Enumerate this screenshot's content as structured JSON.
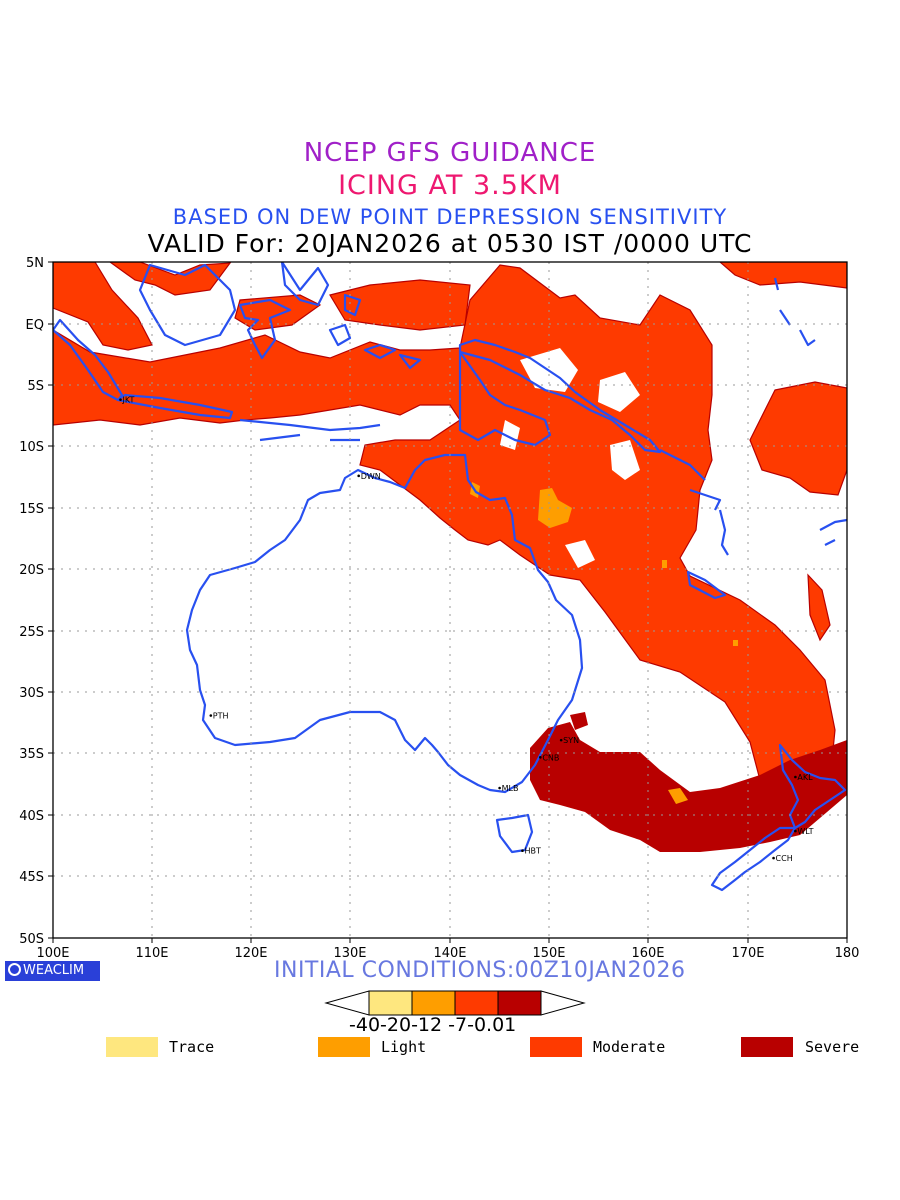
{
  "header": {
    "line1": "NCEP GFS GUIDANCE",
    "line2": "ICING AT 3.5KM",
    "line3": "BASED ON DEW POINT DEPRESSION SENSITIVITY",
    "line4": "VALID For: 20JAN2026 at 0530 IST /0000 UTC"
  },
  "axes": {
    "lat_labels": [
      "5N",
      "EQ",
      "5S",
      "10S",
      "15S",
      "20S",
      "25S",
      "30S",
      "35S",
      "40S",
      "45S",
      "50S"
    ],
    "lon_labels": [
      "100E",
      "110E",
      "120E",
      "130E",
      "140E",
      "150E",
      "160E",
      "170E",
      "180"
    ]
  },
  "cities": [
    {
      "code": "JKT",
      "lon": 106.8,
      "lat": -6.2
    },
    {
      "code": "DWN",
      "lon": 130.8,
      "lat": -12.4
    },
    {
      "code": "PTH",
      "lon": 115.9,
      "lat": -31.9
    },
    {
      "code": "SYN",
      "lon": 151.2,
      "lat": -33.9
    },
    {
      "code": "CNB",
      "lon": 149.1,
      "lat": -35.3
    },
    {
      "code": "MLB",
      "lon": 145.0,
      "lat": -37.8
    },
    {
      "code": "HBT",
      "lon": 147.3,
      "lat": -42.9
    },
    {
      "code": "AKL",
      "lon": 174.8,
      "lat": -36.9
    },
    {
      "code": "WLT",
      "lon": 174.8,
      "lat": -41.3
    },
    {
      "code": "CCH",
      "lon": 172.6,
      "lat": -43.5
    }
  ],
  "footer": {
    "logo": "WEACLIM",
    "initial_conditions": "INITIAL CONDITIONS:00Z10JAN2026"
  },
  "colorbar": {
    "ticks": "-40-20-12 -7-0.01",
    "colors": [
      "#fee77f",
      "#fe9e00",
      "#fe3a00",
      "#b80000"
    ]
  },
  "legend": [
    {
      "label": "Trace",
      "color": "#fee77f"
    },
    {
      "label": "Light",
      "color": "#fe9e00"
    },
    {
      "label": "Moderate",
      "color": "#fe3a00"
    },
    {
      "label": "Severe",
      "color": "#b80000"
    }
  ]
}
